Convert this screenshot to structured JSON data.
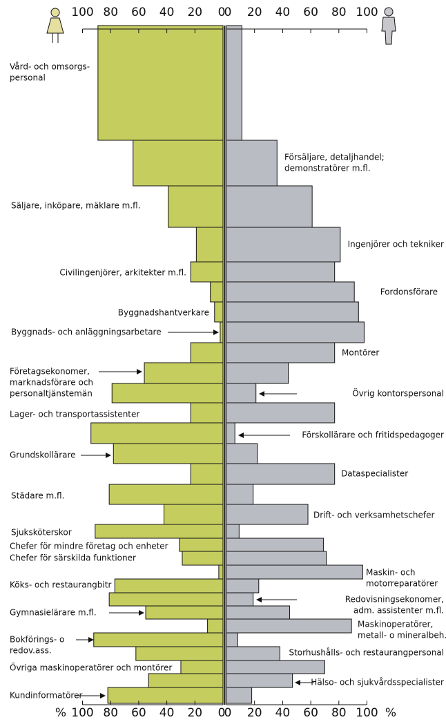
{
  "chart_data": {
    "type": "butterfly",
    "unit": "%",
    "xlim": [
      0,
      100
    ],
    "xticks": [
      0,
      20,
      40,
      60,
      80,
      100
    ],
    "categories": [
      [
        "Vård- och omsorgs-",
        "personal"
      ],
      [
        "Försäljare, detaljhandel;",
        "demonstratörer m.fl."
      ],
      [
        "Säljare, inköpare, mäklare m.fl."
      ],
      [
        "Ingenjörer och tekniker"
      ],
      [
        "Civilingenjörer, arkitekter m.fl."
      ],
      [
        "Fordonsförare"
      ],
      [
        "Byggnadshantverkare"
      ],
      [
        "Byggnads- och anläggningsarbetare"
      ],
      [
        "Montörer"
      ],
      [
        "Företagsekonomer,",
        "marknadsförare och",
        "personaltjänstemän"
      ],
      [
        "Övrig kontorspersonal"
      ],
      [
        "Lager- och transportassistenter"
      ],
      [
        "Förskollärare och fritidspedagoger"
      ],
      [
        "Grundskollärare"
      ],
      [
        "Dataspecialister"
      ],
      [
        "Städare m.fl."
      ],
      [
        "Drift- och verksamhetschefer"
      ],
      [
        "Sjuksköterskor"
      ],
      [
        "Chefer för mindre företag och enheter"
      ],
      [
        "Chefer för särskilda funktioner"
      ],
      [
        "Maskin- och",
        "motorreparatörer"
      ],
      [
        "Köks- och restaurangbitr"
      ],
      [
        "Redovisningsekonomer,",
        "adm. assistenter m.fl."
      ],
      [
        "Gymnasielärare m.fl."
      ],
      [
        "Maskinoperatörer,",
        "metall- o mineralbeh."
      ],
      [
        "Bokförings- o",
        "redov.ass."
      ],
      [
        "Storhushålls- och restaurangpersonal"
      ],
      [
        "Övriga maskinoperatörer och montörer"
      ],
      [
        "Hälso- och sjukvårdsspecialister"
      ],
      [
        "Kundinformatörer"
      ]
    ],
    "series": [
      {
        "name": "Kvinnor",
        "color": "#c5cd5f",
        "values": [
          89,
          64,
          39,
          19,
          23,
          9,
          6,
          2,
          23,
          56,
          79,
          23,
          94,
          78,
          23,
          81,
          42,
          91,
          31,
          29,
          3,
          77,
          81,
          55,
          11,
          92,
          62,
          30,
          53,
          82
        ]
      },
      {
        "name": "Män",
        "color": "#babcc3",
        "values": [
          11,
          36,
          61,
          81,
          77,
          91,
          94,
          98,
          77,
          44,
          21,
          77,
          6,
          22,
          77,
          19,
          58,
          9,
          69,
          71,
          97,
          23,
          19,
          45,
          89,
          8,
          38,
          70,
          47,
          18
        ]
      }
    ]
  }
}
